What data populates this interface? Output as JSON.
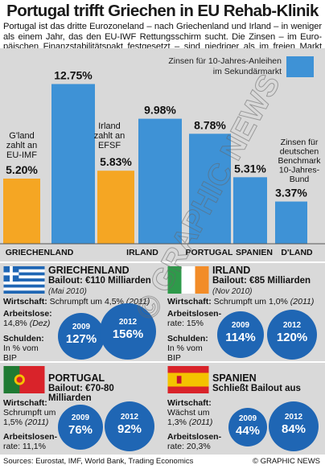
{
  "title": "Portugal trifft Griechen in EU Rehab-Klinik",
  "intro": [
    "Portugal ist das dritte Eurozoneland – nach Griechenland und Irland – in weniger",
    "als einem Jahr, das den EU-IWF Rettungsschirm sucht. Die Zinsen – im Euro-",
    "päischen Finanzstabilitätspakt festgesetzt – sind niedriger als im freien Markt"
  ],
  "legend": {
    "label": "Zinsen für 10-Jahres-Anleihen im Sekundärmarkt",
    "color": "#3e92d6"
  },
  "chart_data": {
    "type": "bar",
    "ylim": [
      0,
      14
    ],
    "grid": false,
    "legend_position": "top-right",
    "categories": [
      "GRIECHENLAND",
      "IRLAND",
      "PORTUGAL",
      "SPANIEN",
      "D'LAND"
    ],
    "series": [
      {
        "name": "EU-IMF / EFSF",
        "color": "#f5a623",
        "points": [
          {
            "category": "GRIECHENLAND",
            "value": 5.2,
            "label": "5.20%",
            "note": "G'land zahlt an EU-IMF"
          },
          {
            "category": "IRLAND",
            "value": 5.83,
            "label": "5.83%",
            "note": "Irland zahlt an EFSF"
          }
        ]
      },
      {
        "name": "Zinsen für 10-Jahres-Anleihen im Sekundärmarkt",
        "color": "#3e92d6",
        "points": [
          {
            "category": "GRIECHENLAND",
            "value": 12.75,
            "label": "12.75%"
          },
          {
            "category": "IRLAND",
            "value": 9.98,
            "label": "9.98%"
          },
          {
            "category": "PORTUGAL",
            "value": 8.78,
            "label": "8.78%"
          },
          {
            "category": "SPANIEN",
            "value": 5.31,
            "label": "5.31%"
          },
          {
            "category": "D'LAND",
            "value": 3.37,
            "label": "3.37%",
            "note": "Zinsen für deutschen Benchmark 10-Jahres-Bund"
          }
        ]
      }
    ]
  },
  "countries": {
    "greece": {
      "name": "GRIECHENLAND",
      "bailout": "Bailout: €110 Milliarden",
      "date": "(Mai 2010)",
      "wirtschaft_label": "Wirtschaft:",
      "wirtschaft_text": "Schrumpft um 4,5%",
      "wirtschaft_year": "(2011)",
      "arbeitslose_label": "Arbeitslose:",
      "arbeitslose_text": "14,8%",
      "arbeitslose_year": "(Dez)",
      "schulden_label": "Schulden:",
      "schulden_text": "In % vom BIP",
      "debt_2009_year": "2009",
      "debt_2009": "127%",
      "debt_2012_year": "2012",
      "debt_2012": "156%"
    },
    "ireland": {
      "name": "IRLAND",
      "bailout": "Bailout: €85 Milliarden",
      "date": "(Nov 2010)",
      "wirtschaft_label": "Wirtschaft:",
      "wirtschaft_text": "Schrumpft um 1,0%",
      "wirtschaft_year": "(2011)",
      "arbeitslose_label": "Arbeitslosen-",
      "arbeitslose_text": "rate: 15%",
      "schulden_label": "Schulden:",
      "schulden_text": "In % vom BIP",
      "debt_2009_year": "2009",
      "debt_2009": "114%",
      "debt_2012_year": "2012",
      "debt_2012": "120%"
    },
    "portugal": {
      "name": "PORTUGAL",
      "bailout": "Bailout: €70-80 Milliarden",
      "wirtschaft_label": "Wirtschaft:",
      "wirtschaft_text1": "Schrumpft um",
      "wirtschaft_text2": "1,5%",
      "wirtschaft_year": "(2011)",
      "arbeitslose_label": "Arbeitslosen-",
      "arbeitslose_text": "rate: 11,1%",
      "debt_2009_year": "2009",
      "debt_2009": "76%",
      "debt_2012_year": "2012",
      "debt_2012": "92%"
    },
    "spain": {
      "name": "SPANIEN",
      "bailout": "Schließt Bailout aus",
      "wirtschaft_label": "Wirtschaft:",
      "wirtschaft_text1": "Wächst um",
      "wirtschaft_text2": "1,3%",
      "wirtschaft_year": "(2011)",
      "arbeitslose_label": "Arbeitslosen-",
      "arbeitslose_text": "rate: 20,3%",
      "debt_2009_year": "2009",
      "debt_2009": "44%",
      "debt_2012_year": "2012",
      "debt_2012": "84%"
    }
  },
  "watermark": "© GRAPHIC NEWS",
  "footer": {
    "sources": "Sources: Eurostat, IMF, World Bank, Trading Economics",
    "copyright": "© GRAPHIC NEWS"
  },
  "colors": {
    "orange": "#f5a623",
    "blue_bar": "#3e92d6",
    "blue_circle": "#1f66b4",
    "panel_bg": "#d9d9d9"
  }
}
